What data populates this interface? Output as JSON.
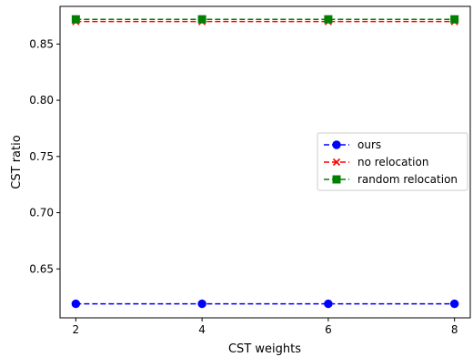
{
  "chart_data": {
    "type": "line",
    "xlabel": "CST weights",
    "ylabel": "CST ratio",
    "x": [
      2,
      4,
      6,
      8
    ],
    "xticks": [
      "2",
      "4",
      "6",
      "8"
    ],
    "xlim": [
      1.75,
      8.25
    ],
    "yticks": [
      "0.65",
      "0.70",
      "0.75",
      "0.80",
      "0.85"
    ],
    "ytick_values": [
      0.65,
      0.7,
      0.75,
      0.8,
      0.85
    ],
    "ylim": [
      0.6065,
      0.8835
    ],
    "grid": false,
    "legend_position": "center-right",
    "series": [
      {
        "name": "ours",
        "values": [
          0.619,
          0.619,
          0.619,
          0.619
        ],
        "color": "#0000ff",
        "marker": "circle",
        "linestyle": "dashed"
      },
      {
        "name": "no relocation",
        "values": [
          0.87,
          0.87,
          0.87,
          0.87
        ],
        "color": "#ff0000",
        "marker": "x",
        "linestyle": "dashed"
      },
      {
        "name": "random relocation",
        "values": [
          0.872,
          0.872,
          0.872,
          0.872
        ],
        "color": "#008000",
        "marker": "square",
        "linestyle": "dashed"
      }
    ]
  }
}
